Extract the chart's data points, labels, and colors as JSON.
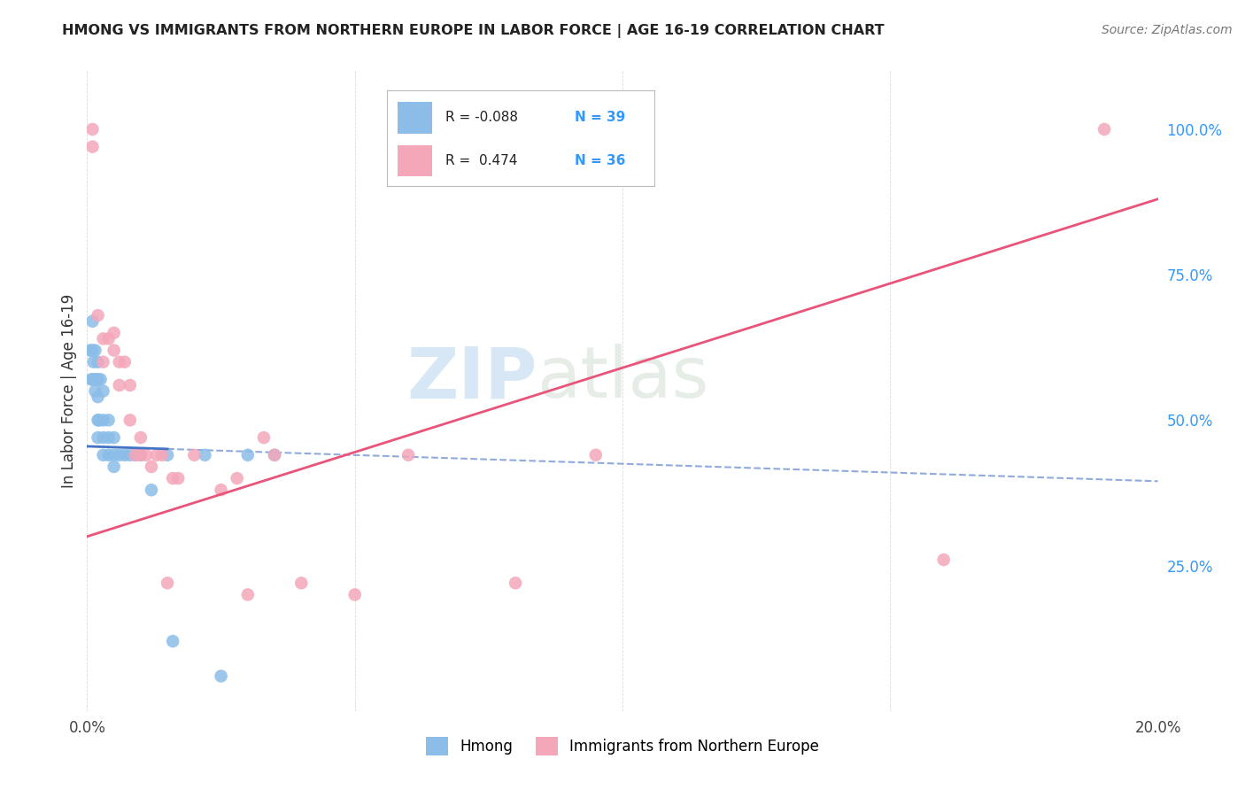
{
  "title": "HMONG VS IMMIGRANTS FROM NORTHERN EUROPE IN LABOR FORCE | AGE 16-19 CORRELATION CHART",
  "source": "Source: ZipAtlas.com",
  "ylabel": "In Labor Force | Age 16-19",
  "xlim": [
    0.0,
    0.2
  ],
  "ylim": [
    0.0,
    1.1
  ],
  "hmong_color": "#8BBDE8",
  "hmong_color_line": "#4472C4",
  "ne_color": "#F4A7B9",
  "ne_color_line": "#E8547A",
  "watermark_zip": "ZIP",
  "watermark_atlas": "atlas",
  "background_color": "#FFFFFF",
  "grid_color": "#CCCCCC",
  "hmong_x": [
    0.0005,
    0.0008,
    0.001,
    0.001,
    0.001,
    0.0012,
    0.0012,
    0.0015,
    0.0015,
    0.0018,
    0.002,
    0.002,
    0.002,
    0.002,
    0.002,
    0.0022,
    0.0025,
    0.003,
    0.003,
    0.003,
    0.003,
    0.004,
    0.004,
    0.004,
    0.005,
    0.005,
    0.005,
    0.006,
    0.007,
    0.008,
    0.009,
    0.01,
    0.012,
    0.015,
    0.016,
    0.022,
    0.025,
    0.03,
    0.035
  ],
  "hmong_y": [
    0.62,
    0.57,
    0.67,
    0.62,
    0.57,
    0.6,
    0.57,
    0.62,
    0.55,
    0.57,
    0.6,
    0.57,
    0.54,
    0.5,
    0.47,
    0.5,
    0.57,
    0.55,
    0.5,
    0.47,
    0.44,
    0.5,
    0.47,
    0.44,
    0.47,
    0.44,
    0.42,
    0.44,
    0.44,
    0.44,
    0.44,
    0.44,
    0.38,
    0.44,
    0.12,
    0.44,
    0.06,
    0.44,
    0.44
  ],
  "ne_x": [
    0.001,
    0.001,
    0.002,
    0.003,
    0.003,
    0.004,
    0.005,
    0.005,
    0.006,
    0.006,
    0.007,
    0.008,
    0.008,
    0.009,
    0.01,
    0.01,
    0.011,
    0.012,
    0.013,
    0.014,
    0.015,
    0.016,
    0.017,
    0.02,
    0.025,
    0.028,
    0.03,
    0.033,
    0.035,
    0.04,
    0.05,
    0.06,
    0.08,
    0.095,
    0.16,
    0.19
  ],
  "ne_y": [
    0.97,
    1.0,
    0.68,
    0.64,
    0.6,
    0.64,
    0.65,
    0.62,
    0.6,
    0.56,
    0.6,
    0.56,
    0.5,
    0.44,
    0.47,
    0.44,
    0.44,
    0.42,
    0.44,
    0.44,
    0.22,
    0.4,
    0.4,
    0.44,
    0.38,
    0.4,
    0.2,
    0.47,
    0.44,
    0.22,
    0.2,
    0.44,
    0.22,
    0.44,
    0.26,
    1.0
  ],
  "hmong_R": -0.088,
  "ne_R": 0.474,
  "hmong_N": 39,
  "ne_N": 36,
  "hmong_line_x0": 0.0,
  "hmong_line_x1": 0.2,
  "hmong_line_y0": 0.455,
  "hmong_line_y1": 0.395,
  "ne_line_x0": 0.0,
  "ne_line_x1": 0.2,
  "ne_line_y0": 0.3,
  "ne_line_y1": 0.88
}
